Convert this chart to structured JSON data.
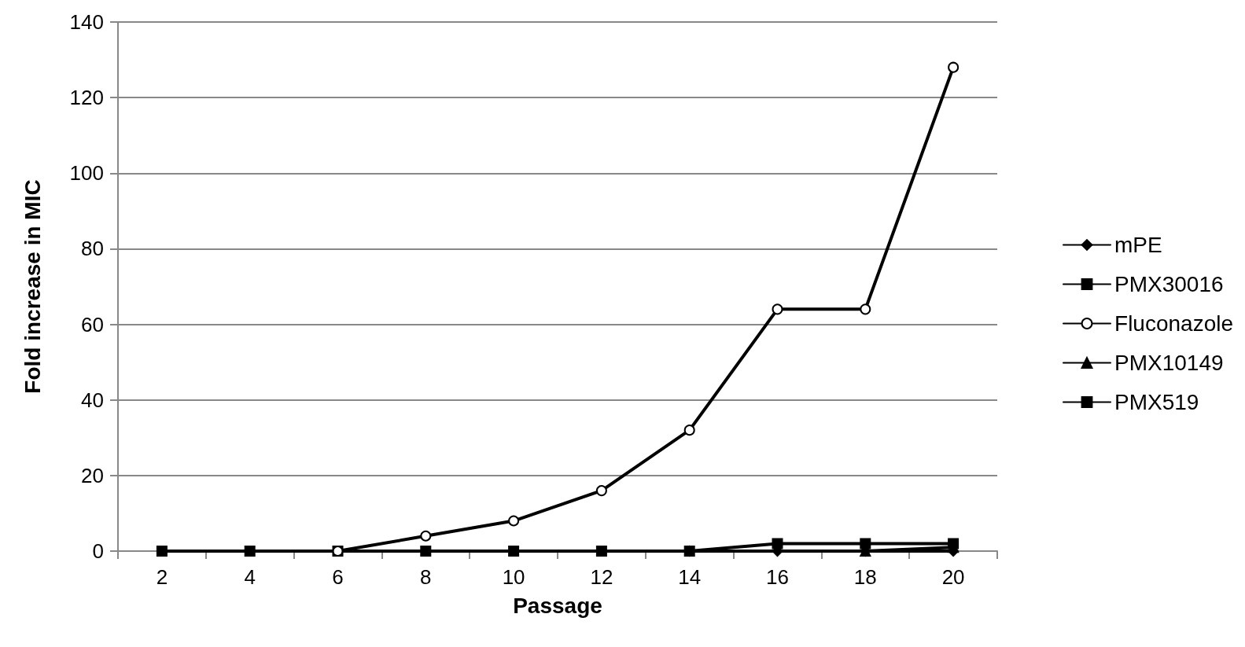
{
  "chart_data": {
    "type": "line",
    "xlabel": "Passage",
    "ylabel": "Fold increase in MIC",
    "categories": [
      "2",
      "4",
      "6",
      "8",
      "10",
      "12",
      "14",
      "16",
      "18",
      "20"
    ],
    "series": [
      {
        "name": "mPE",
        "color": "#000000",
        "marker": "diamond",
        "values": [
          null,
          null,
          null,
          null,
          null,
          null,
          0,
          0,
          0,
          0
        ]
      },
      {
        "name": "PMX30016",
        "color": "#000000",
        "marker": "square",
        "values": [
          0,
          0,
          0,
          0,
          0,
          0,
          0,
          2,
          2,
          2
        ]
      },
      {
        "name": "Fluconazole",
        "color": "#000000",
        "marker": "circle",
        "values": [
          null,
          null,
          0,
          4,
          8,
          16,
          32,
          64,
          64,
          128
        ]
      },
      {
        "name": "PMX10149",
        "color": "#000000",
        "marker": "triangle",
        "values": [
          null,
          null,
          null,
          null,
          null,
          null,
          null,
          null,
          0,
          1
        ]
      },
      {
        "name": "PMX519",
        "color": "#000000",
        "marker": "square",
        "values": [
          null,
          null,
          null,
          null,
          null,
          null,
          null,
          null,
          null,
          null
        ]
      }
    ],
    "ylim": [
      0,
      140
    ],
    "yticks": [
      0,
      20,
      40,
      60,
      80,
      100,
      120,
      140
    ],
    "grid": "y",
    "legend": "right",
    "line_style": "solid"
  }
}
